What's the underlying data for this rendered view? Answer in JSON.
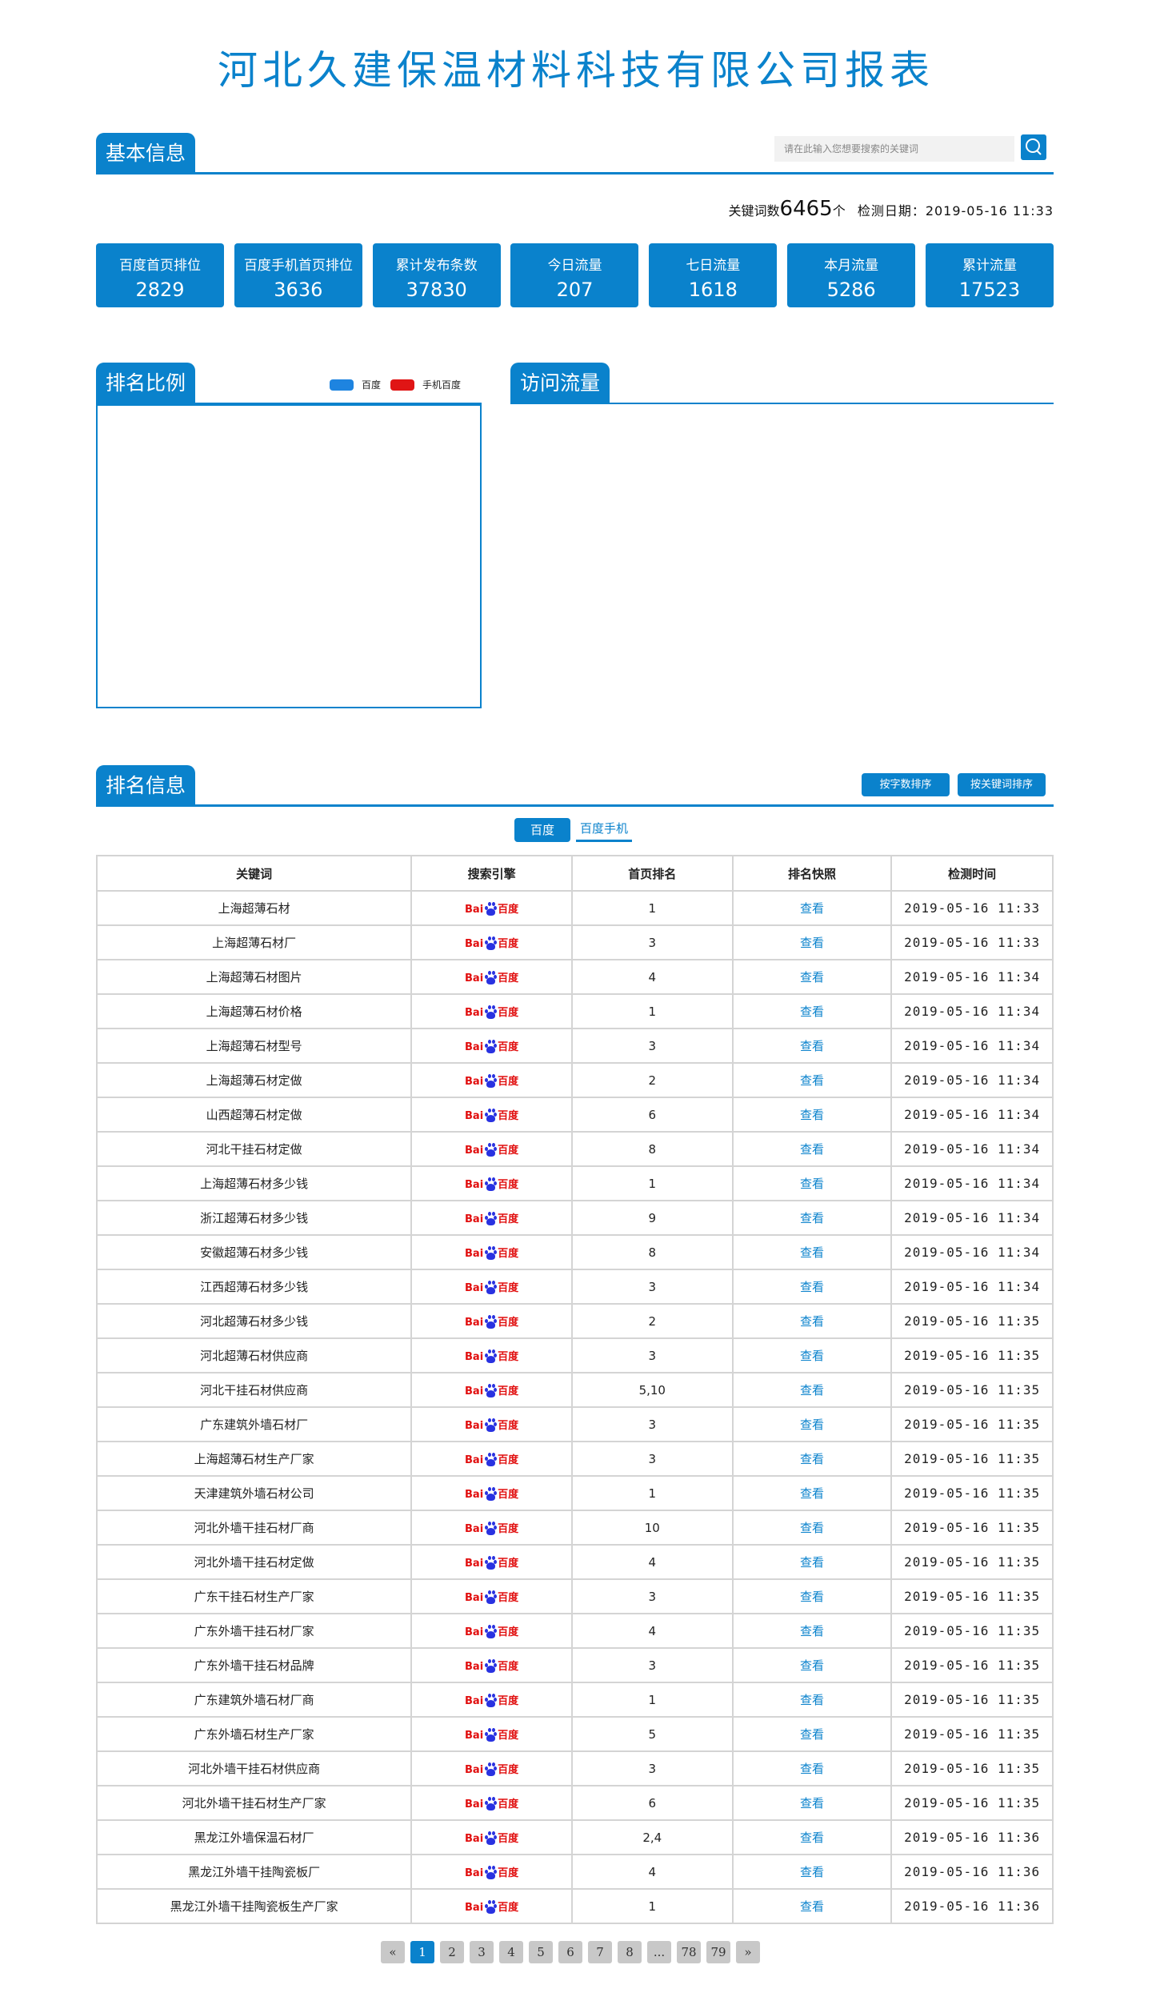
{
  "title": "河北久建保温材料科技有限公司报表",
  "basic": {
    "tab": "基本信息",
    "search_placeholder": "请在此输入您想要搜索的关键词",
    "kw_label": "关键词数",
    "kw_count": "6465",
    "kw_unit": "个",
    "date_label": "检测日期：2019-05-16 11:33",
    "stats": [
      {
        "label": "百度首页排位",
        "value": "2829"
      },
      {
        "label": "百度手机首页排位",
        "value": "3636"
      },
      {
        "label": "累计发布条数",
        "value": "37830"
      },
      {
        "label": "今日流量",
        "value": "207"
      },
      {
        "label": "七日流量",
        "value": "1618"
      },
      {
        "label": "本月流量",
        "value": "5286"
      },
      {
        "label": "累计流量",
        "value": "17523"
      }
    ]
  },
  "ratio": {
    "tab": "排名比例",
    "legend": [
      {
        "name": "百度",
        "color": "#1e84e0"
      },
      {
        "name": "手机百度",
        "color": "#e01515"
      }
    ]
  },
  "traffic": {
    "tab": "访问流量"
  },
  "ranking": {
    "tab": "排名信息",
    "sort_by_chars": "按字数排序",
    "sort_by_keyword": "按关键词排序",
    "engine_tabs": [
      "百度",
      "百度手机"
    ],
    "columns": [
      "关键词",
      "搜索引擎",
      "首页排名",
      "排名快照",
      "检测时间"
    ],
    "engine_logo": "Baidu 百度",
    "snapshot_label": "查看",
    "rows": [
      [
        "上海超薄石材",
        "1",
        "2019-05-16 11:33"
      ],
      [
        "上海超薄石材厂",
        "3",
        "2019-05-16 11:33"
      ],
      [
        "上海超薄石材图片",
        "4",
        "2019-05-16 11:34"
      ],
      [
        "上海超薄石材价格",
        "1",
        "2019-05-16 11:34"
      ],
      [
        "上海超薄石材型号",
        "3",
        "2019-05-16 11:34"
      ],
      [
        "上海超薄石材定做",
        "2",
        "2019-05-16 11:34"
      ],
      [
        "山西超薄石材定做",
        "6",
        "2019-05-16 11:34"
      ],
      [
        "河北干挂石材定做",
        "8",
        "2019-05-16 11:34"
      ],
      [
        "上海超薄石材多少钱",
        "1",
        "2019-05-16 11:34"
      ],
      [
        "浙江超薄石材多少钱",
        "9",
        "2019-05-16 11:34"
      ],
      [
        "安徽超薄石材多少钱",
        "8",
        "2019-05-16 11:34"
      ],
      [
        "江西超薄石材多少钱",
        "3",
        "2019-05-16 11:34"
      ],
      [
        "河北超薄石材多少钱",
        "2",
        "2019-05-16 11:35"
      ],
      [
        "河北超薄石材供应商",
        "3",
        "2019-05-16 11:35"
      ],
      [
        "河北干挂石材供应商",
        "5,10",
        "2019-05-16 11:35"
      ],
      [
        "广东建筑外墙石材厂",
        "3",
        "2019-05-16 11:35"
      ],
      [
        "上海超薄石材生产厂家",
        "3",
        "2019-05-16 11:35"
      ],
      [
        "天津建筑外墙石材公司",
        "1",
        "2019-05-16 11:35"
      ],
      [
        "河北外墙干挂石材厂商",
        "10",
        "2019-05-16 11:35"
      ],
      [
        "河北外墙干挂石材定做",
        "4",
        "2019-05-16 11:35"
      ],
      [
        "广东干挂石材生产厂家",
        "3",
        "2019-05-16 11:35"
      ],
      [
        "广东外墙干挂石材厂家",
        "4",
        "2019-05-16 11:35"
      ],
      [
        "广东外墙干挂石材品牌",
        "3",
        "2019-05-16 11:35"
      ],
      [
        "广东建筑外墙石材厂商",
        "1",
        "2019-05-16 11:35"
      ],
      [
        "广东外墙石材生产厂家",
        "5",
        "2019-05-16 11:35"
      ],
      [
        "河北外墙干挂石材供应商",
        "3",
        "2019-05-16 11:35"
      ],
      [
        "河北外墙干挂石材生产厂家",
        "6",
        "2019-05-16 11:35"
      ],
      [
        "黑龙江外墙保温石材厂",
        "2,4",
        "2019-05-16 11:36"
      ],
      [
        "黑龙江外墙干挂陶瓷板厂",
        "4",
        "2019-05-16 11:36"
      ],
      [
        "黑龙江外墙干挂陶瓷板生产厂家",
        "1",
        "2019-05-16 11:36"
      ]
    ]
  },
  "pagination": {
    "prev": "«",
    "pages": [
      "1",
      "2",
      "3",
      "4",
      "5",
      "6",
      "7",
      "8",
      "...",
      "78",
      "79"
    ],
    "current": "1",
    "next": "»"
  },
  "colors": {
    "accent": "#0a82cc",
    "baidu_red": "#e10e0e",
    "baidu_blue": "#2932e1"
  }
}
